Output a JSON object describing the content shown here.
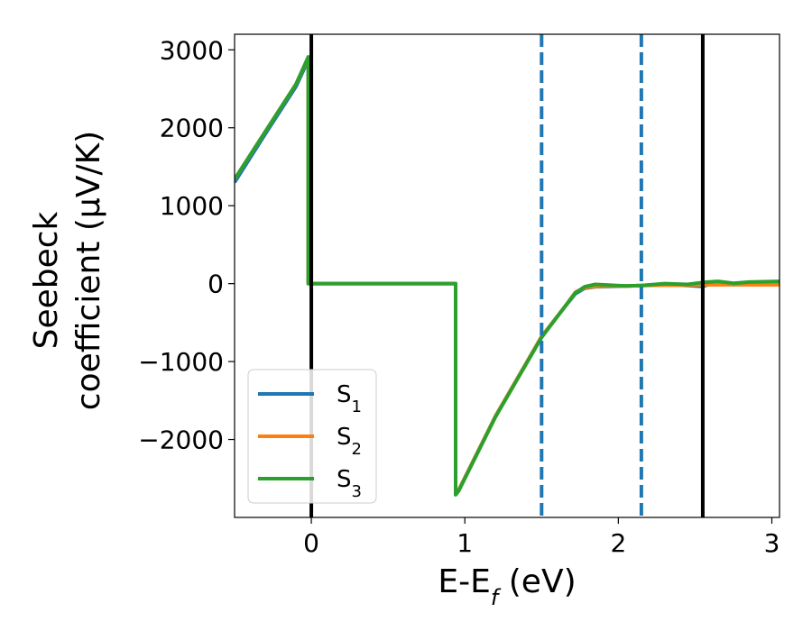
{
  "chart_data": {
    "type": "line",
    "xlabel": {
      "base": "E-E",
      "sub": "f",
      "suffix": " (eV)"
    },
    "ylabel": {
      "line1": "Seebeck",
      "line2": "coefficient  (μV/K)"
    },
    "xlim": [
      -0.5,
      3.05
    ],
    "ylim": [
      -3000,
      3200
    ],
    "xticks": [
      0,
      1,
      2,
      3
    ],
    "xtick_labels": [
      "0",
      "1",
      "2",
      "3"
    ],
    "yticks": [
      -2000,
      -1000,
      0,
      1000,
      2000,
      3000
    ],
    "ytick_labels": [
      "−2000",
      "−1000",
      "0",
      "1000",
      "2000",
      "3000"
    ],
    "grid": false,
    "legend_position": "lower-left",
    "series": [
      {
        "name": "S",
        "sub": "1",
        "color": "#1f77b4",
        "x": [
          -0.5,
          -0.3,
          -0.1,
          -0.02,
          -0.02,
          0.0,
          0.5,
          0.94,
          0.94,
          0.96,
          1.2,
          1.5,
          1.65,
          1.72,
          1.78,
          1.85,
          1.95,
          2.05,
          2.15,
          2.3,
          2.45,
          2.55,
          2.65,
          2.75,
          2.85,
          3.05
        ],
        "y": [
          1300,
          1920,
          2530,
          2870,
          0,
          0,
          0,
          0,
          -2700,
          -2650,
          -1700,
          -680,
          -300,
          -130,
          -60,
          -40,
          -35,
          -30,
          -25,
          -10,
          -25,
          -35,
          25,
          -15,
          10,
          15
        ]
      },
      {
        "name": "S",
        "sub": "2",
        "color": "#ff7f0e",
        "x": [
          -0.5,
          -0.3,
          -0.1,
          -0.02,
          -0.02,
          0.0,
          0.5,
          0.94,
          0.94,
          0.96,
          1.2,
          1.5,
          1.65,
          1.72,
          1.78,
          1.85,
          1.95,
          2.05,
          2.15,
          2.3,
          2.45,
          2.55,
          2.65,
          2.75,
          2.85,
          3.05
        ],
        "y": [
          1340,
          1950,
          2560,
          2900,
          0,
          0,
          0,
          0,
          -2700,
          -2650,
          -1700,
          -680,
          -300,
          -110,
          -50,
          -35,
          -30,
          -30,
          -25,
          -20,
          -20,
          -15,
          -15,
          -15,
          -15,
          -15
        ]
      },
      {
        "name": "S",
        "sub": "3",
        "color": "#2ca02c",
        "x": [
          -0.5,
          -0.3,
          -0.1,
          -0.02,
          -0.02,
          0.0,
          0.5,
          0.94,
          0.94,
          0.96,
          1.2,
          1.5,
          1.65,
          1.72,
          1.78,
          1.85,
          1.95,
          2.05,
          2.15,
          2.3,
          2.45,
          2.55,
          2.65,
          2.75,
          2.85,
          3.05
        ],
        "y": [
          1340,
          1950,
          2560,
          2910,
          0,
          0,
          0,
          0,
          -2710,
          -2660,
          -1710,
          -690,
          -300,
          -120,
          -40,
          -10,
          -20,
          -30,
          -25,
          0,
          -10,
          15,
          30,
          5,
          20,
          30
        ]
      }
    ],
    "reference_lines": [
      {
        "x": 0.0,
        "style": "solid",
        "color": "#000000"
      },
      {
        "x": 2.55,
        "style": "solid",
        "color": "#000000"
      },
      {
        "x": 1.5,
        "style": "dashed",
        "color": "#1f77b4"
      },
      {
        "x": 2.15,
        "style": "dashed",
        "color": "#1f77b4"
      }
    ]
  }
}
